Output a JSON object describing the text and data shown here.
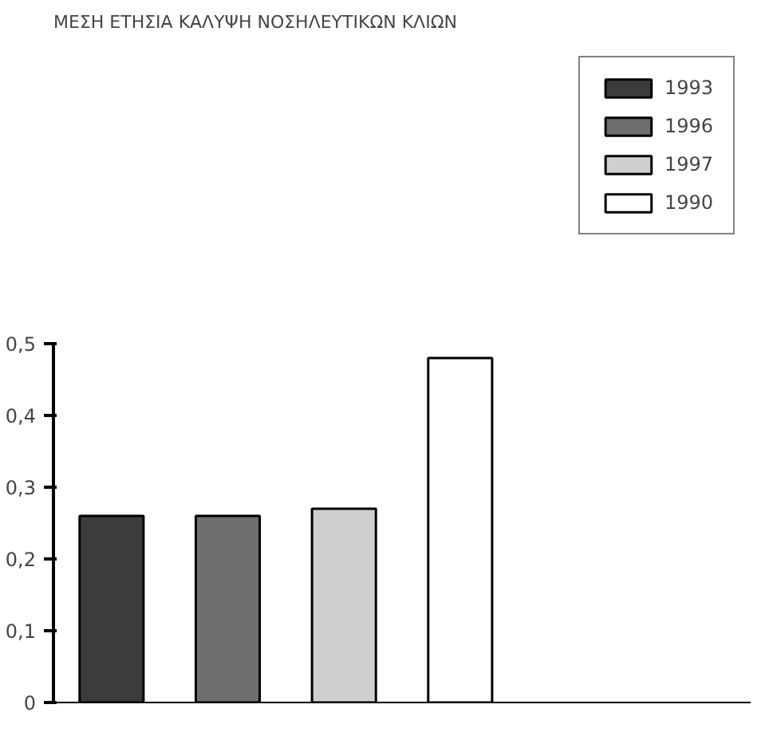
{
  "chart_data": {
    "type": "bar",
    "title": "ΜΕΣΗ ΕΤΗΣΙΑ ΚΑΛΥΨΗ ΝΟΣΗΛΕΥΤΙΚΩΝ ΚΛΙΩΝ",
    "categories": [
      null,
      null,
      null,
      null,
      null,
      null
    ],
    "series": [
      {
        "name": "1993",
        "color": "#3c3c3c",
        "values": [
          0.26,
          null,
          null,
          null,
          null,
          null
        ]
      },
      {
        "name": "1996",
        "color": "#6e6e6e",
        "values": [
          null,
          0.26,
          null,
          null,
          null,
          null
        ]
      },
      {
        "name": "1997",
        "color": "#cfcfcf",
        "values": [
          null,
          null,
          0.27,
          null,
          null,
          null
        ]
      },
      {
        "name": "1990",
        "color": "#ffffff",
        "values": [
          null,
          null,
          null,
          0.48,
          null,
          null
        ]
      }
    ],
    "ylim": [
      0,
      0.5
    ],
    "yticks": [
      {
        "value": 0,
        "label": "0"
      },
      {
        "value": 0.1,
        "label": "0,1"
      },
      {
        "value": 0.2,
        "label": "0,2"
      },
      {
        "value": 0.3,
        "label": "0,3"
      },
      {
        "value": 0.4,
        "label": "0,4"
      },
      {
        "value": 0.5,
        "label": "0,5"
      }
    ],
    "grid": false,
    "legend": "top right"
  }
}
